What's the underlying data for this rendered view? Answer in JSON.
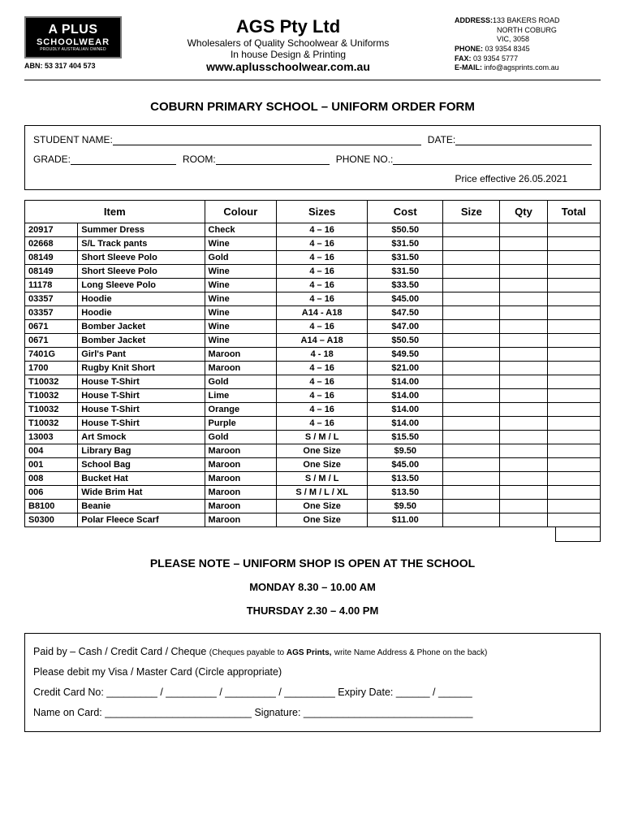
{
  "logo": {
    "line1": "A PLUS",
    "line2": "SCHOOLWEAR",
    "tag": "PROUDLY AUSTRALIAN OWNED"
  },
  "abn": "ABN: 53 317 404 573",
  "company": "AGS Pty Ltd",
  "sub1": "Wholesalers of Quality Schoolwear & Uniforms",
  "sub2": "In house Design & Printing",
  "website": "www.aplusschoolwear.com.au",
  "contact": {
    "addrLabel": "ADDRESS:",
    "addr1": "133 BAKERS ROAD",
    "addr2": "NORTH COBURG",
    "addr3": "VIC, 3058",
    "phoneLabel": "PHONE:",
    "phone": " 03 9354 8345",
    "faxLabel": "FAX:",
    "fax": " 03 9354 5777",
    "emailLabel": "E-MAIL:",
    "email": " info@agsprints.com.au"
  },
  "formTitle": "COBURN PRIMARY SCHOOL – UNIFORM ORDER FORM",
  "labels": {
    "student": "STUDENT NAME:",
    "date": "DATE:",
    "grade": "GRADE:",
    "room": "ROOM:",
    "phone": "PHONE NO.:"
  },
  "priceEffective": "Price effective 26.05.2021",
  "columns": {
    "item": "Item",
    "colour": "Colour",
    "sizes": "Sizes",
    "cost": "Cost",
    "size": "Size",
    "qty": "Qty",
    "total": "Total"
  },
  "rows": [
    {
      "code": "20917",
      "item": "Summer Dress",
      "colour": "Check",
      "sizes": "4 – 16",
      "cost": "$50.50"
    },
    {
      "code": "02668",
      "item": "S/L Track pants",
      "colour": "Wine",
      "sizes": "4 – 16",
      "cost": "$31.50"
    },
    {
      "code": "08149",
      "item": "Short Sleeve Polo",
      "colour": "Gold",
      "sizes": "4 – 16",
      "cost": "$31.50"
    },
    {
      "code": "08149",
      "item": "Short Sleeve Polo",
      "colour": "Wine",
      "sizes": "4 – 16",
      "cost": "$31.50"
    },
    {
      "code": "11178",
      "item": "Long Sleeve Polo",
      "colour": "Wine",
      "sizes": "4 – 16",
      "cost": "$33.50"
    },
    {
      "code": "03357",
      "item": "Hoodie",
      "colour": "Wine",
      "sizes": "4 – 16",
      "cost": "$45.00"
    },
    {
      "code": "03357",
      "item": "Hoodie",
      "colour": "Wine",
      "sizes": "A14 - A18",
      "cost": "$47.50"
    },
    {
      "code": "0671",
      "item": "Bomber Jacket",
      "colour": "Wine",
      "sizes": "4 – 16",
      "cost": "$47.00"
    },
    {
      "code": "0671",
      "item": "Bomber Jacket",
      "colour": "Wine",
      "sizes": "A14 – A18",
      "cost": "$50.50"
    },
    {
      "code": "7401G",
      "item": "Girl's Pant",
      "colour": "Maroon",
      "sizes": "4 - 18",
      "cost": "$49.50"
    },
    {
      "code": "1700",
      "item": "Rugby Knit Short",
      "colour": "Maroon",
      "sizes": "4 – 16",
      "cost": "$21.00"
    },
    {
      "code": "T10032",
      "item": "House T-Shirt",
      "colour": "Gold",
      "sizes": "4 – 16",
      "cost": "$14.00"
    },
    {
      "code": "T10032",
      "item": "House T-Shirt",
      "colour": "Lime",
      "sizes": "4 – 16",
      "cost": "$14.00"
    },
    {
      "code": "T10032",
      "item": "House T-Shirt",
      "colour": "Orange",
      "sizes": "4 – 16",
      "cost": "$14.00"
    },
    {
      "code": "T10032",
      "item": "House T-Shirt",
      "colour": "Purple",
      "sizes": "4 – 16",
      "cost": "$14.00"
    },
    {
      "code": "13003",
      "item": "Art Smock",
      "colour": "Gold",
      "sizes": "S / M / L",
      "cost": "$15.50"
    },
    {
      "code": "004",
      "item": "Library Bag",
      "colour": "Maroon",
      "sizes": "One Size",
      "cost": "$9.50"
    },
    {
      "code": "001",
      "item": "School Bag",
      "colour": "Maroon",
      "sizes": "One Size",
      "cost": "$45.00"
    },
    {
      "code": "008",
      "item": "Bucket Hat",
      "colour": "Maroon",
      "sizes": "S / M / L",
      "cost": "$13.50"
    },
    {
      "code": "006",
      "item": "Wide Brim Hat",
      "colour": "Maroon",
      "sizes": "S / M / L / XL",
      "cost": "$13.50"
    },
    {
      "code": "B8100",
      "item": "Beanie",
      "colour": "Maroon",
      "sizes": "One Size",
      "cost": "$9.50"
    },
    {
      "code": "S0300",
      "item": "Polar Fleece Scarf",
      "colour": "Maroon",
      "sizes": "One Size",
      "cost": "$11.00"
    }
  ],
  "note": "PLEASE NOTE – UNIFORM SHOP IS OPEN AT THE SCHOOL",
  "sched1": "MONDAY 8.30 – 10.00 AM",
  "sched2": "THURSDAY 2.30 – 4.00 PM",
  "pay": {
    "l1a": "Paid by – Cash / Credit Card / Cheque  ",
    "l1b": "(Cheques payable to ",
    "l1c": "AGS Prints,",
    "l1d": " write Name Address & Phone on the back)",
    "l2": "Please debit my  Visa / Master Card  (Circle appropriate)",
    "l3a": "Credit Card No:  _________ / _________ / _________ / _________   Expiry Date: ______ / ______",
    "l4a": "Name on Card: __________________________  Signature: ______________________________"
  }
}
